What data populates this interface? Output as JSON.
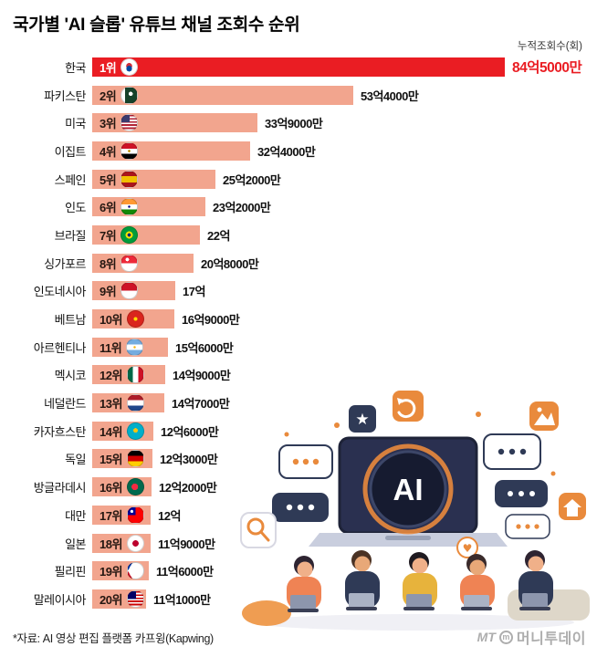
{
  "header": {
    "title": "국가별 'AI 슬롭' 유튜브 채널 조회수 순위",
    "axis_note": "누적조회수(회)"
  },
  "chart_data": {
    "type": "bar",
    "orientation": "horizontal",
    "title": "국가별 'AI 슬롭' 유튜브 채널 조회수 순위",
    "value_unit": "억 회 (hundred million views)",
    "max_value": 84.5,
    "legend_position": "none",
    "grid": false,
    "rows": [
      {
        "country": "한국",
        "rank_label": "1위",
        "value_label": "84억5000만",
        "value": 84.5,
        "flag": "kr",
        "highlight": true
      },
      {
        "country": "파키스탄",
        "rank_label": "2위",
        "value_label": "53억4000만",
        "value": 53.4,
        "flag": "pk",
        "highlight": false
      },
      {
        "country": "미국",
        "rank_label": "3위",
        "value_label": "33억9000만",
        "value": 33.9,
        "flag": "us",
        "highlight": false
      },
      {
        "country": "이집트",
        "rank_label": "4위",
        "value_label": "32억4000만",
        "value": 32.4,
        "flag": "eg",
        "highlight": false
      },
      {
        "country": "스페인",
        "rank_label": "5위",
        "value_label": "25억2000만",
        "value": 25.2,
        "flag": "es",
        "highlight": false
      },
      {
        "country": "인도",
        "rank_label": "6위",
        "value_label": "23억2000만",
        "value": 23.2,
        "flag": "in",
        "highlight": false
      },
      {
        "country": "브라질",
        "rank_label": "7위",
        "value_label": "22억",
        "value": 22.0,
        "flag": "br",
        "highlight": false
      },
      {
        "country": "싱가포르",
        "rank_label": "8위",
        "value_label": "20억8000만",
        "value": 20.8,
        "flag": "sg",
        "highlight": false
      },
      {
        "country": "인도네시아",
        "rank_label": "9위",
        "value_label": "17억",
        "value": 17.0,
        "flag": "id",
        "highlight": false
      },
      {
        "country": "베트남",
        "rank_label": "10위",
        "value_label": "16억9000만",
        "value": 16.9,
        "flag": "vn",
        "highlight": false
      },
      {
        "country": "아르헨티나",
        "rank_label": "11위",
        "value_label": "15억6000만",
        "value": 15.6,
        "flag": "ar",
        "highlight": false
      },
      {
        "country": "멕시코",
        "rank_label": "12위",
        "value_label": "14억9000만",
        "value": 14.9,
        "flag": "mx",
        "highlight": false
      },
      {
        "country": "네덜란드",
        "rank_label": "13위",
        "value_label": "14억7000만",
        "value": 14.7,
        "flag": "nl",
        "highlight": false
      },
      {
        "country": "카자흐스탄",
        "rank_label": "14위",
        "value_label": "12억6000만",
        "value": 12.6,
        "flag": "kz",
        "highlight": false
      },
      {
        "country": "독일",
        "rank_label": "15위",
        "value_label": "12억3000만",
        "value": 12.3,
        "flag": "de",
        "highlight": false
      },
      {
        "country": "방글라데시",
        "rank_label": "16위",
        "value_label": "12억2000만",
        "value": 12.2,
        "flag": "bd",
        "highlight": false
      },
      {
        "country": "대만",
        "rank_label": "17위",
        "value_label": "12억",
        "value": 12.0,
        "flag": "tw",
        "highlight": false
      },
      {
        "country": "일본",
        "rank_label": "18위",
        "value_label": "11억9000만",
        "value": 11.9,
        "flag": "jp",
        "highlight": false
      },
      {
        "country": "필리핀",
        "rank_label": "19위",
        "value_label": "11억6000만",
        "value": 11.6,
        "flag": "ph",
        "highlight": false
      },
      {
        "country": "말레이시아",
        "rank_label": "20위",
        "value_label": "11억1000만",
        "value": 11.1,
        "flag": "my",
        "highlight": false
      }
    ],
    "colors": {
      "bar": "#F2A58E",
      "highlight_bar": "#EA1D23",
      "highlight_value_text": "#EA1D23",
      "text": "#111111"
    }
  },
  "illustration": {
    "ai_badge": "AI"
  },
  "footer": {
    "source": "*자료: AI 영상 편집 플랫폼 카프윙(Kapwing)",
    "logo_mt": "MT",
    "logo_m": "m",
    "logo_name": "머니투데이"
  }
}
